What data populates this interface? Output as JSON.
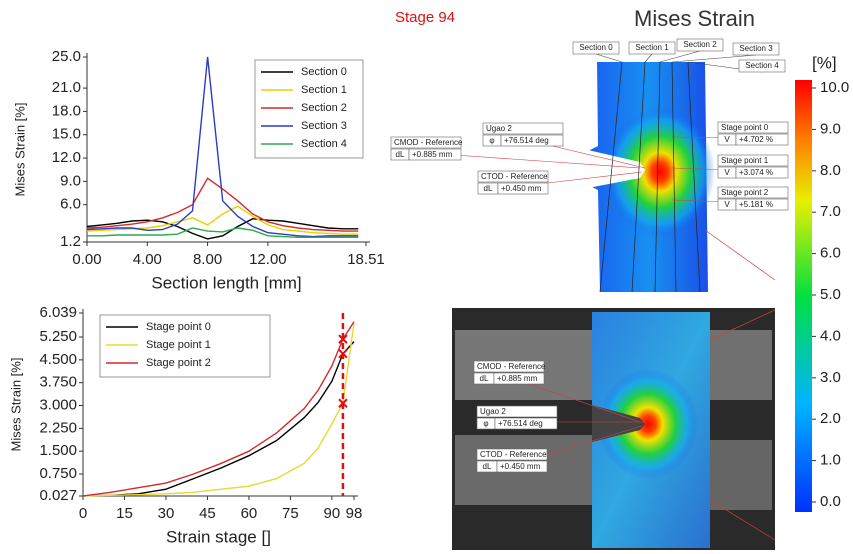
{
  "stage_label": "Stage 94",
  "image_title": "Mises Strain",
  "chart_data": [
    {
      "type": "line",
      "y_label": "Mises Strain [%]",
      "x_label": "Section length [mm]",
      "x": [
        0,
        1,
        2,
        3,
        4,
        5,
        6,
        7,
        8,
        9,
        10,
        11,
        12,
        13,
        14,
        15,
        16,
        17,
        18
      ],
      "xlim": [
        0,
        18.51
      ],
      "xticks": [
        {
          "value": 0,
          "label": "0.00"
        },
        {
          "value": 4,
          "label": "4.00"
        },
        {
          "value": 8,
          "label": "8.00"
        },
        {
          "value": 12,
          "label": "12.00"
        },
        18.51
      ],
      "ylim": [
        1.2,
        25.0
      ],
      "yticks": [
        1.2,
        {
          "value": 6,
          "label": "6.0"
        },
        {
          "value": 9,
          "label": "9.0"
        },
        {
          "value": 12,
          "label": "12.0"
        },
        {
          "value": 15,
          "label": "15.0"
        },
        {
          "value": 18,
          "label": "18.0"
        },
        {
          "value": 21,
          "label": "21.0"
        },
        {
          "value": 25,
          "label": "25.0"
        }
      ],
      "series": [
        {
          "name": "Section 0",
          "color": "#000000",
          "values": [
            3.2,
            3.4,
            3.6,
            3.9,
            4.0,
            3.8,
            3.2,
            2.3,
            1.6,
            2.0,
            3.2,
            4.2,
            4.0,
            3.9,
            3.6,
            3.3,
            3.0,
            2.9,
            2.9
          ]
        },
        {
          "name": "Section 1",
          "color": "#e6d200",
          "values": [
            2.6,
            2.7,
            2.8,
            2.9,
            3.0,
            3.3,
            3.8,
            4.3,
            3.4,
            4.8,
            5.8,
            4.5,
            3.4,
            2.8,
            2.6,
            2.4,
            2.3,
            2.2,
            2.2
          ]
        },
        {
          "name": "Section 2",
          "color": "#d42a2a",
          "values": [
            3.0,
            3.1,
            3.3,
            3.5,
            3.8,
            4.3,
            5.0,
            6.0,
            9.4,
            8.0,
            6.5,
            4.8,
            3.8,
            3.3,
            3.0,
            2.8,
            2.7,
            2.6,
            2.6
          ]
        },
        {
          "name": "Section 3",
          "color": "#2a3cc8",
          "values": [
            2.8,
            2.9,
            3.0,
            3.0,
            2.7,
            2.8,
            3.5,
            5.2,
            25.0,
            6.5,
            4.5,
            3.2,
            2.4,
            2.2,
            2.0,
            1.9,
            2.0,
            2.0,
            2.0
          ]
        },
        {
          "name": "Section 4",
          "color": "#2aaa4a",
          "values": [
            2.0,
            2.0,
            2.1,
            2.1,
            2.1,
            2.1,
            2.2,
            3.0,
            2.6,
            2.5,
            3.0,
            2.7,
            2.0,
            1.9,
            1.8,
            1.8,
            1.8,
            1.8,
            1.8
          ]
        }
      ]
    },
    {
      "type": "line",
      "y_label": "Mises Strain [%]",
      "x_label": "Strain stage []",
      "x": [
        0,
        10,
        20,
        30,
        40,
        50,
        60,
        70,
        80,
        85,
        90,
        94,
        98
      ],
      "xlim": [
        0,
        98
      ],
      "xticks": [
        0,
        15,
        30,
        45,
        60,
        75,
        90,
        98
      ],
      "ylim": [
        0.027,
        6.039
      ],
      "yticks": [
        0.027,
        {
          "value": 0.75,
          "label": "0.750"
        },
        {
          "value": 1.5,
          "label": "1.500"
        },
        {
          "value": 2.25,
          "label": "2.250"
        },
        {
          "value": 3,
          "label": "3.000"
        },
        {
          "value": 3.75,
          "label": "3.750"
        },
        {
          "value": 4.5,
          "label": "4.500"
        },
        {
          "value": 5.25,
          "label": "5.250"
        },
        6.039
      ],
      "current_stage": 94,
      "series": [
        {
          "name": "Stage point 0",
          "color": "#000000",
          "values": [
            0.03,
            0.05,
            0.1,
            0.25,
            0.6,
            0.95,
            1.35,
            1.85,
            2.6,
            3.1,
            3.8,
            4.702,
            5.1
          ]
        },
        {
          "name": "Stage point 1",
          "color": "#e8d830",
          "values": [
            0.03,
            0.05,
            0.07,
            0.1,
            0.15,
            0.25,
            0.35,
            0.6,
            1.1,
            1.6,
            2.4,
            3.074,
            5.7
          ]
        },
        {
          "name": "Stage point 2",
          "color": "#d42a2a",
          "values": [
            0.03,
            0.15,
            0.3,
            0.45,
            0.75,
            1.1,
            1.5,
            2.1,
            2.9,
            3.5,
            4.3,
            5.181,
            5.75
          ]
        }
      ]
    }
  ],
  "colorbar": {
    "title": "[%]",
    "lim": [
      0,
      10
    ],
    "ticks": [
      {
        "value": 0,
        "label": "0.0"
      },
      {
        "value": 1,
        "label": "1.0"
      },
      {
        "value": 2,
        "label": "2.0"
      },
      {
        "value": 3,
        "label": "3.0"
      },
      {
        "value": 4,
        "label": "4.0"
      },
      {
        "value": 5,
        "label": "5.0"
      },
      {
        "value": 6,
        "label": "6.0"
      },
      {
        "value": 7,
        "label": "7.0"
      },
      {
        "value": 8,
        "label": "8.0"
      },
      {
        "value": 9,
        "label": "9.0"
      },
      {
        "value": 10,
        "label": "10.0"
      }
    ]
  },
  "top_image": {
    "sections": [
      "Section 4",
      "Section 3",
      "Section 2",
      "Section 1",
      "Section 0"
    ],
    "ugao": {
      "title": "Ugao 2",
      "symbol": "φ",
      "value": "+76.514 deg"
    },
    "cmod": {
      "title": "CMOD - Reference",
      "symbol": "dL",
      "value": "+0.885 mm"
    },
    "ctod": {
      "title": "CTOD - Reference",
      "symbol": "dL",
      "value": "+0.450 mm"
    },
    "stage_points": [
      {
        "title": "Stage point 0",
        "symbol": "V",
        "value": "+4.702 %"
      },
      {
        "title": "Stage point 1",
        "symbol": "V",
        "value": "+3.074 %"
      },
      {
        "title": "Stage point 2",
        "symbol": "V",
        "value": "+5.181 %"
      }
    ]
  },
  "bottom_image": {
    "cmod": {
      "title": "CMOD - Reference",
      "symbol": "dL",
      "value": "+0.885 mm"
    },
    "ugao": {
      "title": "Ugao 2",
      "symbol": "φ",
      "value": "+76.514 deg"
    },
    "ctod": {
      "title": "CTOD - Reference",
      "symbol": "dL",
      "value": "+0.450 mm"
    }
  }
}
